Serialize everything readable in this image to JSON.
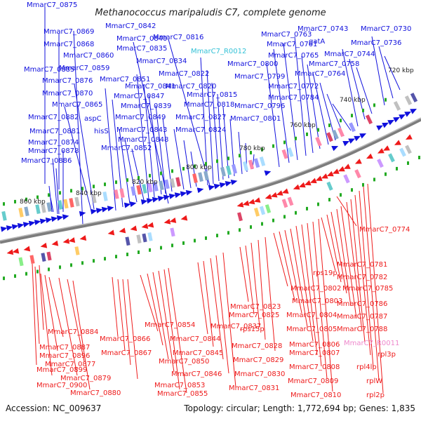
{
  "title": "Methanococcus maripaludis C7, complete genome",
  "footer": {
    "accession": "Accession: NC_009637",
    "summary": "Topology: circular; Length: 1,772,694 bp; Genes: 1,835"
  },
  "colors": {
    "forward": "#1010dd",
    "reverse": "#ee1a1a",
    "rna": "#33c1d6",
    "pseudo": "#ee88cc",
    "backbone": "#888888",
    "tick_mark": "#22aa22"
  },
  "ticks": [
    {
      "label": "720 kbp"
    },
    {
      "label": "740 kbp"
    },
    {
      "label": "760 kbp"
    },
    {
      "label": "780 kbp"
    },
    {
      "label": "800 kbp"
    },
    {
      "label": "820 kbp"
    },
    {
      "label": "840 kbp"
    },
    {
      "label": "860 kbp"
    }
  ],
  "labels_top": [
    "MmarC7_0875",
    "MmarC7_0842",
    "MmarC7_0869",
    "MmarC7_0840",
    "MmarC7_0816",
    "MmarC7_0868",
    "MmarC7_0835",
    "MmarC7_0860",
    "MmarC7_0834",
    "MmarC7_0859",
    "MmarC7_0822",
    "MmarC7_0885",
    "MmarC7_0851",
    "MmarC7_0876",
    "MmarC7_0841",
    "MmarC7_0820",
    "MmarC7_0870",
    "MmarC7_0847",
    "MmarC7_0815",
    "MmarC7_0865",
    "MmarC7_0839",
    "MmarC7_0818",
    "MmarC7_0882",
    "aspC",
    "MmarC7_0849",
    "MmarC7_0827",
    "MmarC7_0881",
    "hisS",
    "MmarC7_0843",
    "MmarC7_0824",
    "MmarC7_0874",
    "MmarC7_0848",
    "MmarC7_0878",
    "MmarC7_0852",
    "MmarC7_0886",
    "MmarC7_R0012",
    "MmarC7_0800",
    "MmarC7_0799",
    "MmarC7_0796",
    "MmarC7_0801",
    "MmarC7_0763",
    "MmarC7_0761",
    "MmarC7_0765",
    "MmarC7_0743",
    "gatA",
    "MmarC7_0744",
    "MmarC7_0730",
    "MmarC7_0736",
    "MmarC7_0758",
    "MmarC7_0764",
    "MmarC7_0772",
    "MmarC7_0784"
  ],
  "labels_bottom": [
    "MmarC7_0774",
    "MmarC7_0781",
    "rps19p",
    "MmarC7_0782",
    "MmarC7_0802",
    "MmarC7_0785",
    "MmarC7_0803",
    "MmarC7_0786",
    "MmarC7_0823",
    "MmarC7_0825",
    "MmarC7_0804",
    "MmarC7_0787",
    "rps15p",
    "MmarC7_0854",
    "MmarC7_0837",
    "MmarC7_0805",
    "MmarC7_0788",
    "MmarC7_0884",
    "MmarC7_0866",
    "MmarC7_0844",
    "MmarC7_0887",
    "MmarC7_0828",
    "MmarC7_0806",
    "MmarC7_R0011",
    "MmarC7_0896",
    "MmarC7_0867",
    "MmarC7_0845",
    "MmarC7_0807",
    "rpl3p",
    "MmarC7_0877",
    "MmarC7_0850",
    "MmarC7_0829",
    "MmarC7_0899",
    "MmarC7_0846",
    "MmarC7_0830",
    "MmarC7_0808",
    "rpl4lp",
    "MmarC7_0879",
    "MmarC7_0900",
    "MmarC7_0853",
    "MmarC7_0809",
    "rplW",
    "MmarC7_0880",
    "MmarC7_0855",
    "MmarC7_0831",
    "MmarC7_0810",
    "rpl2p"
  ]
}
